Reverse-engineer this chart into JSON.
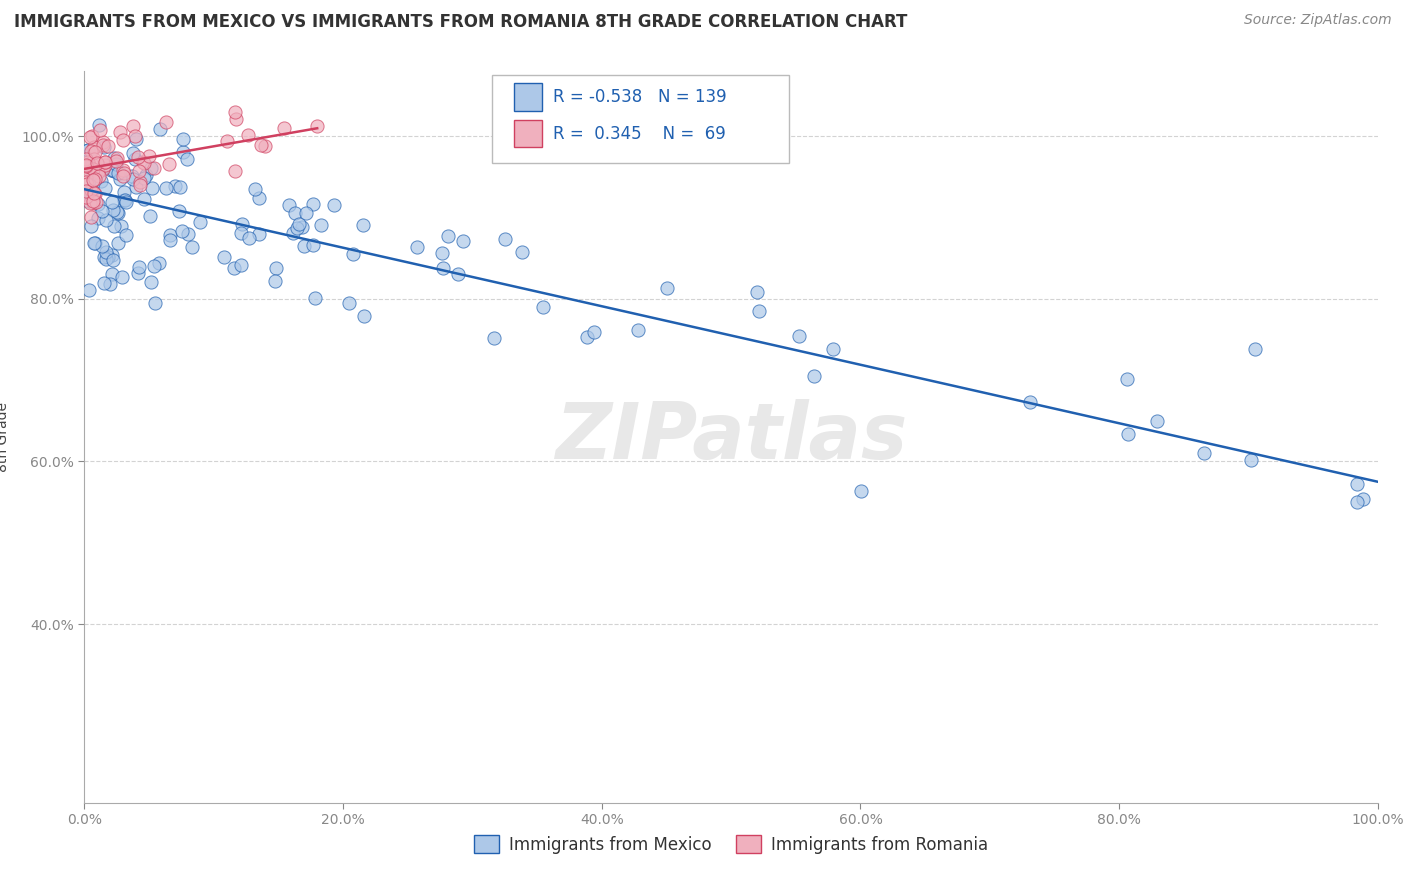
{
  "title": "IMMIGRANTS FROM MEXICO VS IMMIGRANTS FROM ROMANIA 8TH GRADE CORRELATION CHART",
  "source": "Source: ZipAtlas.com",
  "xlabel_legend1": "Immigrants from Mexico",
  "xlabel_legend2": "Immigrants from Romania",
  "ylabel": "8th Grade",
  "R_mexico": -0.538,
  "N_mexico": 139,
  "R_romania": 0.345,
  "N_romania": 69,
  "color_mexico": "#adc8e8",
  "color_romania": "#f0b0be",
  "line_color_mexico": "#2060b0",
  "line_color_romania": "#d04060",
  "background_color": "#ffffff",
  "grid_color": "#c8c8c8",
  "xlim": [
    0.0,
    1.0
  ],
  "ylim": [
    0.18,
    1.08
  ],
  "mex_line_x0": 0.0,
  "mex_line_y0": 0.935,
  "mex_line_x1": 1.0,
  "mex_line_y1": 0.575,
  "rom_line_x0": 0.0,
  "rom_line_y0": 0.96,
  "rom_line_x1": 0.18,
  "rom_line_y1": 1.01,
  "watermark": "ZIPatlas",
  "title_fontsize": 12,
  "axis_label_fontsize": 10,
  "tick_fontsize": 10,
  "legend_fontsize": 12,
  "source_fontsize": 10
}
